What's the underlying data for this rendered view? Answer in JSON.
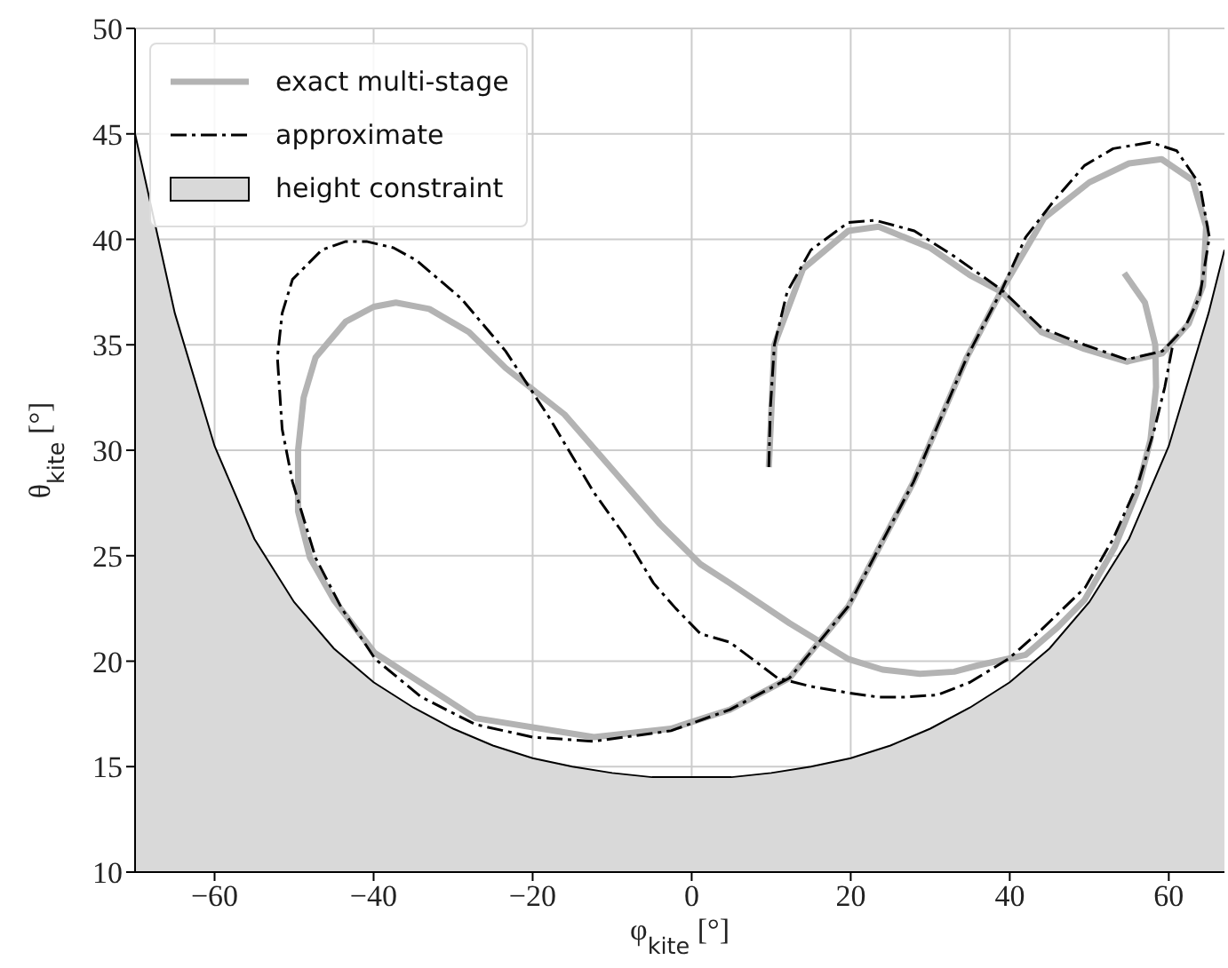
{
  "chart_data": {
    "type": "line",
    "xlabel": "φ$_{kite}$ [°]",
    "ylabel": "θ$_{kite}$ [°]",
    "xlim": [
      -70,
      67
    ],
    "ylim": [
      10,
      50
    ],
    "xticks": [
      -60,
      -40,
      -20,
      0,
      20,
      40,
      60
    ],
    "yticks": [
      10,
      15,
      20,
      25,
      30,
      35,
      40,
      45,
      50
    ],
    "grid": true,
    "legend": "top left",
    "series": [
      {
        "name": "exact multi-stage",
        "color": "#b3b3b3",
        "line_style": "solid",
        "x": [
          9.7,
          10.4,
          14,
          19.7,
          23.5,
          30,
          35,
          39,
          44,
          49.4,
          54.7,
          59.2,
          62.5,
          64.3,
          64.7,
          63,
          59.1,
          55,
          50,
          44.3,
          39,
          34.6,
          27.9,
          19.7,
          12.3,
          4.8,
          -2.6,
          -12.3,
          -27.2,
          -39.9,
          -45,
          -48,
          -49.5,
          -49.5,
          -48.8,
          -47.3,
          -43.5,
          -40,
          -37.2,
          -33,
          -28,
          -23.4,
          -16,
          -9.3,
          -4,
          1.1,
          4.8,
          12.3,
          19.7,
          24,
          28.7,
          33,
          36,
          42,
          46,
          49.4,
          53.2,
          56,
          57.7,
          58.4,
          58.3,
          57,
          54.4
        ],
        "values": [
          29.2,
          35,
          38.6,
          40.4,
          40.6,
          39.6,
          38.3,
          37.5,
          35.6,
          34.8,
          34.2,
          34.6,
          36,
          37.8,
          40.6,
          42.8,
          43.8,
          43.6,
          42.7,
          41,
          37.6,
          34.4,
          28.5,
          22.6,
          19.2,
          17.7,
          16.8,
          16.4,
          17.3,
          20.4,
          22.9,
          24.9,
          27.1,
          30,
          32.5,
          34.4,
          36.1,
          36.8,
          37,
          36.7,
          35.6,
          33.9,
          31.7,
          28.8,
          26.5,
          24.6,
          23.7,
          21.8,
          20.1,
          19.6,
          19.4,
          19.5,
          19.8,
          20.3,
          21.6,
          22.9,
          25.4,
          28,
          30.5,
          33,
          35,
          37,
          38.4
        ]
      },
      {
        "name": "approximate",
        "color": "#000000",
        "line_style": "dashed",
        "x": [
          9.7,
          9.9,
          10.4,
          12,
          15,
          19.7,
          23.1,
          28,
          33,
          39,
          44,
          49.4,
          54.7,
          59.2,
          62,
          63.9,
          65.1,
          63.9,
          61,
          57.7,
          53,
          49.4,
          45.5,
          42,
          39,
          34.6,
          27.9,
          19.7,
          12.3,
          4.8,
          -2.6,
          -12.3,
          -20,
          -27.2,
          -34,
          -39.8,
          -44,
          -47.3,
          -50.2,
          -51.5,
          -52.1,
          -51.5,
          -50.2,
          -46.5,
          -43.5,
          -40.9,
          -37.5,
          -34.6,
          -29,
          -23.4,
          -18,
          -12.3,
          -8.5,
          -4.8,
          -2,
          1.1,
          4.8,
          10.8,
          15,
          19.7,
          23.4,
          27,
          30.9,
          35,
          39.8,
          44,
          49.5,
          53,
          56.2,
          58.2,
          59.5,
          60.5
        ],
        "values": [
          29.2,
          32,
          35,
          37.5,
          39.5,
          40.8,
          40.9,
          40.4,
          39.2,
          37.6,
          35.8,
          35,
          34.3,
          34.7,
          35.8,
          37.3,
          40.1,
          42.6,
          44.2,
          44.6,
          44.3,
          43.5,
          41.8,
          40.1,
          37.6,
          34.4,
          28.5,
          22.6,
          19.2,
          17.7,
          16.7,
          16.2,
          16.4,
          17,
          18.3,
          20.1,
          22.5,
          24.9,
          28.5,
          31,
          34.4,
          36.5,
          38.1,
          39.5,
          39.9,
          39.9,
          39.6,
          39,
          37.2,
          34.7,
          31.6,
          28,
          26,
          23.7,
          22.5,
          21.3,
          20.9,
          19.2,
          18.8,
          18.5,
          18.3,
          18.3,
          18.4,
          19,
          20.1,
          21.5,
          23.5,
          25.8,
          28.5,
          31,
          33,
          35
        ]
      },
      {
        "name": "height constraint",
        "type": "area",
        "color": "#d9d9d9",
        "x": [
          -70,
          -65,
          -60,
          -55,
          -50,
          -45,
          -40,
          -35,
          -30,
          -25,
          -20,
          -15,
          -10,
          -5,
          0,
          5,
          10,
          15,
          20,
          25,
          30,
          35,
          40,
          45,
          50,
          55,
          60,
          65,
          67
        ],
        "values": [
          45,
          36.5,
          30.2,
          25.8,
          22.8,
          20.6,
          19,
          17.8,
          16.8,
          16,
          15.4,
          15,
          14.7,
          14.5,
          14.5,
          14.5,
          14.7,
          15,
          15.4,
          16,
          16.8,
          17.8,
          19,
          20.6,
          22.8,
          25.8,
          30.2,
          36.5,
          39.5
        ]
      }
    ]
  }
}
